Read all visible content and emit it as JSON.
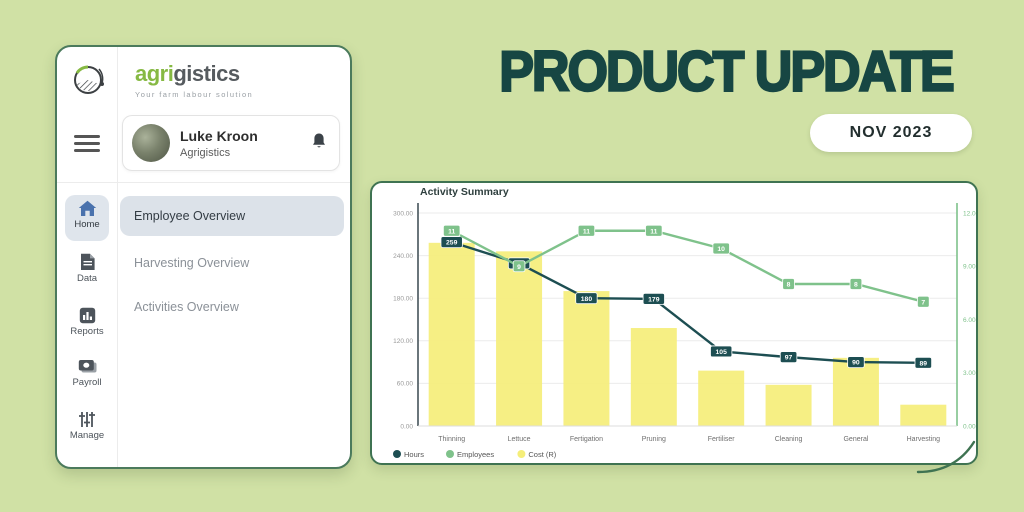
{
  "page": {
    "background_color": "#d0e1a5"
  },
  "hero": {
    "title": "PRODUCT UPDATE",
    "title_color": "#174643",
    "date_badge_label": "NOV 2023"
  },
  "app_window": {
    "brand": {
      "name_accent": "agri",
      "name_rest": "gistics",
      "tagline": "Your farm labour solution",
      "accent_color": "#86b943"
    },
    "user_card": {
      "name": "Luke Kroon",
      "organization": "Agrigistics"
    },
    "nav_rail": {
      "items": [
        {
          "label": "Home",
          "icon": "home-icon",
          "active": true
        },
        {
          "label": "Data",
          "icon": "document-icon",
          "active": false
        },
        {
          "label": "Reports",
          "icon": "bar-chart-icon",
          "active": false
        },
        {
          "label": "Payroll",
          "icon": "banknote-icon",
          "active": false
        },
        {
          "label": "Manage",
          "icon": "sliders-icon",
          "active": false
        }
      ]
    },
    "menu": {
      "items": [
        {
          "label": "Employee Overview",
          "active": true
        },
        {
          "label": "Harvesting Overview",
          "active": false
        },
        {
          "label": "Activities Overview",
          "active": false
        }
      ]
    }
  },
  "chart_data": {
    "type": "combo-bar-line",
    "title": "Activity Summary",
    "categories": [
      "Thinning",
      "Lettuce",
      "Fertigation",
      "Pruning",
      "Fertiliser",
      "Cleaning",
      "General",
      "Harvesting"
    ],
    "series": [
      {
        "name": "Hours",
        "type": "line",
        "axis": "left",
        "color": "#1d4e52",
        "values": [
          259,
          229,
          180,
          179,
          105,
          97,
          90,
          89
        ],
        "note": "Lettuce value estimated; its label is overlapped by the Employees label in the source image"
      },
      {
        "name": "Employees",
        "type": "line",
        "axis": "right",
        "color": "#7fc28b",
        "values": [
          11,
          9,
          11,
          11,
          10,
          8,
          8,
          7
        ]
      },
      {
        "name": "Cost (R)",
        "type": "bar",
        "axis": "left",
        "color": "#f5ee79",
        "values": [
          258,
          246,
          190,
          138,
          78,
          58,
          96,
          30
        ],
        "note": "bar heights estimated from gridlines on the left-axis scale"
      }
    ],
    "left_axis": {
      "min": 0,
      "max": 300,
      "ticks": [
        "300.00",
        "240.00",
        "180.00",
        "120.00",
        "60.00",
        "0.00"
      ]
    },
    "right_axis": {
      "min": 0,
      "max": 12,
      "ticks": [
        "12.00",
        "9.00",
        "6.00",
        "3.00",
        "0.00"
      ],
      "color": "#7fc28b"
    },
    "legend": [
      "Hours",
      "Employees",
      "Cost (R)"
    ],
    "legend_position": "bottom-left",
    "grid": true
  }
}
